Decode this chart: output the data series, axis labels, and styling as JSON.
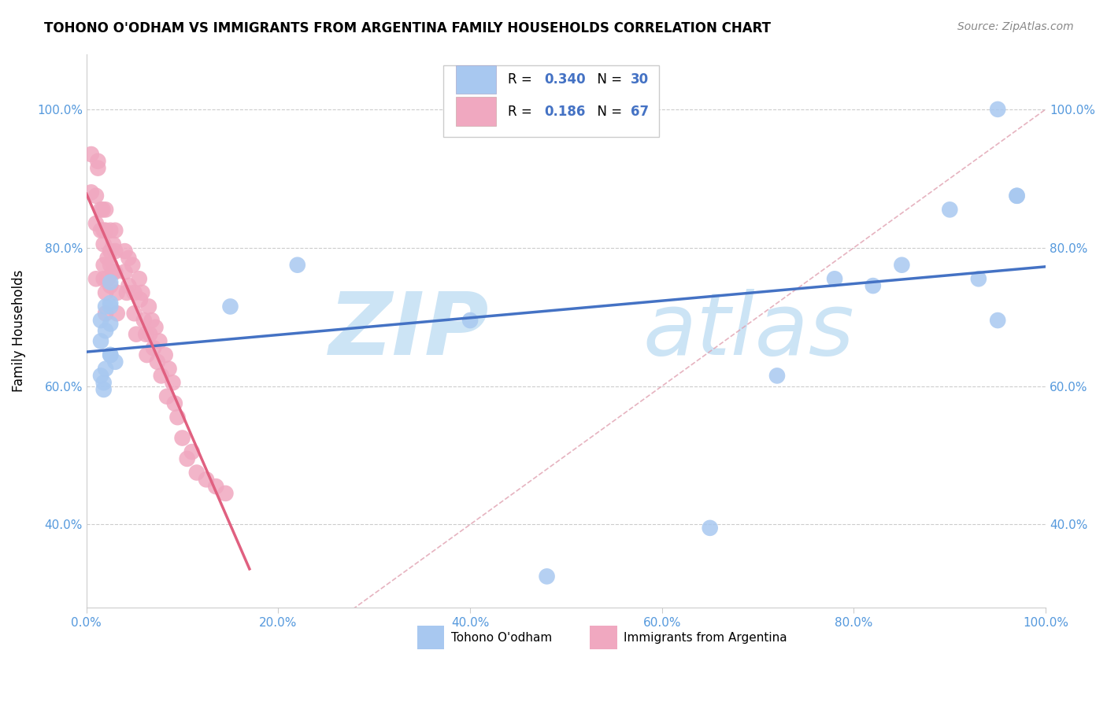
{
  "title": "TOHONO O'ODHAM VS IMMIGRANTS FROM ARGENTINA FAMILY HOUSEHOLDS CORRELATION CHART",
  "source": "Source: ZipAtlas.com",
  "ylabel": "Family Households",
  "blue_R": 0.34,
  "blue_N": 30,
  "pink_R": 0.186,
  "pink_N": 67,
  "blue_color": "#a8c8f0",
  "pink_color": "#f0a8c0",
  "blue_line_color": "#4472c4",
  "pink_line_color": "#e06080",
  "diag_line_color": "#e0a0b0",
  "legend_blue_label": "Tohono O'odham",
  "legend_pink_label": "Immigrants from Argentina",
  "blue_scatter_x": [
    0.015,
    0.02,
    0.025,
    0.025,
    0.02,
    0.025,
    0.015,
    0.025,
    0.03,
    0.015,
    0.018,
    0.02,
    0.018,
    0.025,
    0.025,
    0.15,
    0.22,
    0.4,
    0.48,
    0.65,
    0.72,
    0.78,
    0.82,
    0.85,
    0.9,
    0.93,
    0.95,
    0.95,
    0.97,
    0.97
  ],
  "blue_scatter_y": [
    0.695,
    0.715,
    0.75,
    0.72,
    0.68,
    0.69,
    0.665,
    0.645,
    0.635,
    0.615,
    0.605,
    0.625,
    0.595,
    0.715,
    0.645,
    0.715,
    0.775,
    0.695,
    0.325,
    0.395,
    0.615,
    0.755,
    0.745,
    0.775,
    0.855,
    0.755,
    0.695,
    1.0,
    0.875,
    0.875
  ],
  "pink_scatter_x": [
    0.005,
    0.005,
    0.01,
    0.01,
    0.01,
    0.012,
    0.012,
    0.015,
    0.015,
    0.017,
    0.018,
    0.018,
    0.018,
    0.018,
    0.02,
    0.02,
    0.02,
    0.02,
    0.022,
    0.022,
    0.025,
    0.025,
    0.025,
    0.025,
    0.028,
    0.028,
    0.03,
    0.03,
    0.03,
    0.032,
    0.032,
    0.04,
    0.04,
    0.042,
    0.044,
    0.044,
    0.048,
    0.05,
    0.05,
    0.052,
    0.055,
    0.056,
    0.058,
    0.06,
    0.062,
    0.063,
    0.065,
    0.066,
    0.068,
    0.07,
    0.072,
    0.074,
    0.076,
    0.078,
    0.082,
    0.084,
    0.086,
    0.09,
    0.092,
    0.095,
    0.1,
    0.105,
    0.11,
    0.115,
    0.125,
    0.135,
    0.145
  ],
  "pink_scatter_y": [
    0.935,
    0.88,
    0.875,
    0.835,
    0.755,
    0.925,
    0.915,
    0.855,
    0.825,
    0.855,
    0.825,
    0.805,
    0.775,
    0.755,
    0.735,
    0.705,
    0.855,
    0.825,
    0.785,
    0.755,
    0.825,
    0.795,
    0.775,
    0.745,
    0.805,
    0.765,
    0.825,
    0.795,
    0.765,
    0.735,
    0.705,
    0.795,
    0.765,
    0.735,
    0.785,
    0.745,
    0.775,
    0.735,
    0.705,
    0.675,
    0.755,
    0.725,
    0.735,
    0.695,
    0.675,
    0.645,
    0.715,
    0.675,
    0.695,
    0.655,
    0.685,
    0.635,
    0.665,
    0.615,
    0.645,
    0.585,
    0.625,
    0.605,
    0.575,
    0.555,
    0.525,
    0.495,
    0.505,
    0.475,
    0.465,
    0.455,
    0.445
  ],
  "xlim": [
    0.0,
    1.0
  ],
  "ylim": [
    0.28,
    1.08
  ],
  "yticks": [
    0.4,
    0.6,
    0.8,
    1.0
  ],
  "xticks": [
    0.0,
    0.2,
    0.4,
    0.6,
    0.8,
    1.0
  ],
  "watermark_zip": "ZIP",
  "watermark_atlas": "atlas",
  "watermark_color": "#cce4f5"
}
